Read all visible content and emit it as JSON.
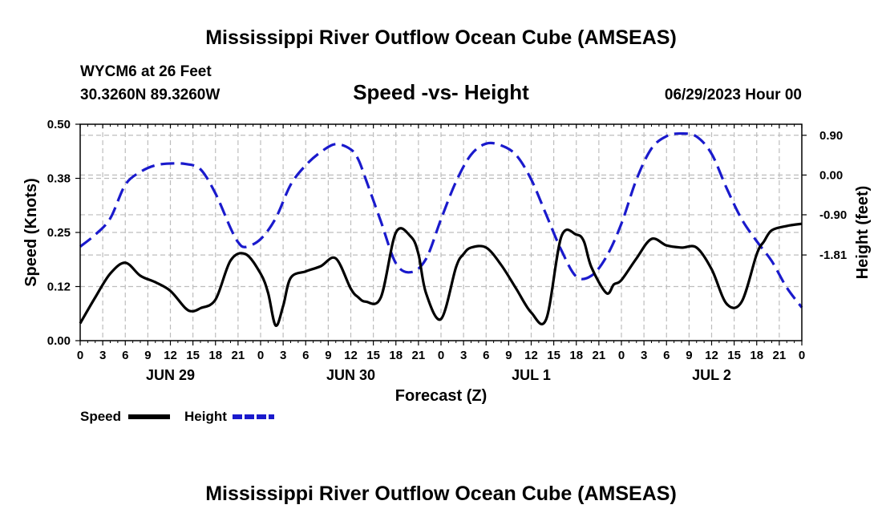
{
  "page": {
    "title_top": "Mississippi River Outflow Ocean Cube (AMSEAS)",
    "title_bottom": "Mississippi River Outflow Ocean Cube (AMSEAS)",
    "station": "WYCM6 at 26 Feet",
    "coords": "30.3260N  89.3260W",
    "forecast_time": "06/29/2023 Hour 00"
  },
  "chart_data": {
    "type": "line",
    "title": "Speed -vs- Height",
    "xlabel": "Forecast (Z)",
    "ylabel": "Speed (Knots)",
    "y2label": "Height (feet)",
    "xlim": [
      0,
      96
    ],
    "ylim": [
      0,
      0.5
    ],
    "y2lim": [
      -3.75,
      1.15
    ],
    "x_tick_labels": [
      "0",
      "3",
      "6",
      "9",
      "12",
      "15",
      "18",
      "21",
      "0",
      "3",
      "6",
      "9",
      "12",
      "15",
      "18",
      "21",
      "0",
      "3",
      "6",
      "9",
      "12",
      "15",
      "18",
      "21",
      "0",
      "3",
      "6",
      "9",
      "12",
      "15",
      "18",
      "21",
      "0"
    ],
    "date_labels": [
      {
        "label": "JUN 29",
        "x": 12
      },
      {
        "label": "JUN 30",
        "x": 36
      },
      {
        "label": "JUL 1",
        "x": 60
      },
      {
        "label": "JUL 2",
        "x": 84
      }
    ],
    "y_ticks": [
      {
        "value": 0.0,
        "label": "0.00"
      },
      {
        "value": 0.125,
        "label": "0.12"
      },
      {
        "value": 0.25,
        "label": "0.25"
      },
      {
        "value": 0.375,
        "label": "0.38"
      },
      {
        "value": 0.5,
        "label": "0.50"
      }
    ],
    "y2_ticks": [
      {
        "value": 0.9,
        "label": "0.90"
      },
      {
        "value": 0.0,
        "label": "0.00"
      },
      {
        "value": -0.9,
        "label": "-0.90"
      },
      {
        "value": -1.81,
        "label": "-1.81"
      }
    ],
    "series": [
      {
        "name": "Speed",
        "color": "#000000",
        "dash": "solid",
        "axis": "left",
        "x": [
          0,
          2,
          4,
          6,
          8,
          10,
          12,
          14,
          15,
          16,
          18,
          20,
          22,
          24,
          25,
          26,
          27,
          28,
          30,
          32,
          34,
          36,
          37,
          38,
          40,
          42,
          44,
          45,
          46,
          48,
          50,
          51,
          52,
          54,
          56,
          58,
          60,
          62,
          64,
          66,
          67,
          68,
          70,
          71,
          72,
          74,
          76,
          78,
          80,
          82,
          84,
          86,
          88,
          90,
          91,
          92,
          94,
          96
        ],
        "values": [
          0.04,
          0.1,
          0.155,
          0.18,
          0.15,
          0.135,
          0.115,
          0.075,
          0.068,
          0.075,
          0.095,
          0.185,
          0.2,
          0.155,
          0.11,
          0.035,
          0.08,
          0.145,
          0.16,
          0.172,
          0.19,
          0.12,
          0.1,
          0.09,
          0.1,
          0.25,
          0.24,
          0.2,
          0.11,
          0.05,
          0.17,
          0.2,
          0.215,
          0.215,
          0.175,
          0.12,
          0.065,
          0.05,
          0.24,
          0.245,
          0.23,
          0.17,
          0.11,
          0.13,
          0.14,
          0.19,
          0.235,
          0.22,
          0.215,
          0.215,
          0.165,
          0.085,
          0.09,
          0.2,
          0.23,
          0.255,
          0.265,
          0.27
        ]
      },
      {
        "name": "Height",
        "color": "#1a1acc",
        "dash": "dashed",
        "axis": "right",
        "x": [
          0,
          2,
          4,
          6,
          8,
          10,
          12,
          14,
          16,
          18,
          20,
          21,
          22,
          24,
          26,
          28,
          30,
          32,
          34,
          36,
          37,
          38,
          40,
          42,
          44,
          46,
          48,
          50,
          52,
          54,
          56,
          58,
          60,
          62,
          64,
          66,
          68,
          70,
          72,
          74,
          76,
          78,
          80,
          82,
          84,
          86,
          88,
          90,
          92,
          94,
          96
        ],
        "values": [
          -1.62,
          -1.35,
          -0.98,
          -0.22,
          0.07,
          0.22,
          0.26,
          0.25,
          0.13,
          -0.42,
          -1.2,
          -1.52,
          -1.63,
          -1.45,
          -0.98,
          -0.22,
          0.22,
          0.52,
          0.7,
          0.58,
          0.35,
          -0.1,
          -1.05,
          -2.0,
          -2.2,
          -1.9,
          -1.0,
          -0.15,
          0.46,
          0.71,
          0.67,
          0.45,
          -0.1,
          -0.9,
          -1.7,
          -2.3,
          -2.28,
          -1.85,
          -1.1,
          -0.1,
          0.6,
          0.88,
          0.94,
          0.87,
          0.48,
          -0.3,
          -1.0,
          -1.5,
          -1.95,
          -2.55,
          -3.0
        ]
      }
    ],
    "legend": [
      {
        "label": "Speed",
        "color": "#000000",
        "dash": "solid"
      },
      {
        "label": "Height",
        "color": "#1a1acc",
        "dash": "dashed"
      }
    ]
  }
}
